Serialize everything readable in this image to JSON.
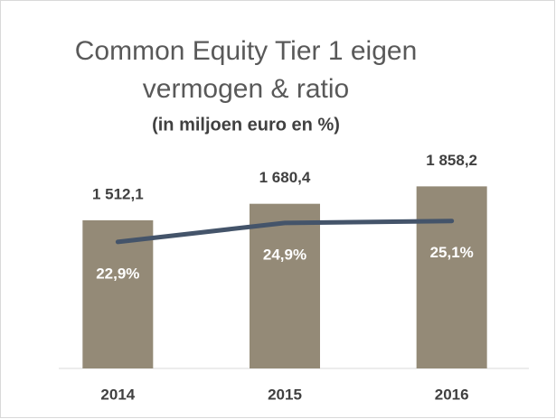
{
  "chart_data": {
    "type": "bar",
    "title": [
      "Common Equity Tier 1 eigen",
      "vermogen & ratio"
    ],
    "subtitle": "(in miljoen euro en %)",
    "categories": [
      "2014",
      "2015",
      "2016"
    ],
    "series": [
      {
        "name": "Common Equity Tier 1 eigen vermogen",
        "type": "bar",
        "color": "#948a77",
        "values": [
          1512.1,
          1680.4,
          1858.2
        ],
        "value_labels": [
          "1 512,1",
          "1 680,4",
          "1 858,2"
        ]
      },
      {
        "name": "ratio",
        "type": "line",
        "axis": "y2",
        "color": "#44546a",
        "values": [
          22.9,
          24.9,
          25.1
        ],
        "value_labels": [
          "22,9%",
          "24,9%",
          "25,1%"
        ]
      }
    ],
    "ylim": [
      0,
      2000
    ],
    "y2lim": [
      9.6,
      30.2
    ]
  }
}
